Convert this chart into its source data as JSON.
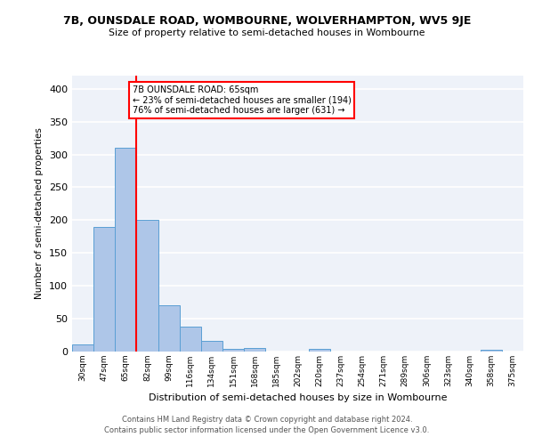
{
  "title_line1": "7B, OUNSDALE ROAD, WOMBOURNE, WOLVERHAMPTON, WV5 9JE",
  "title_line2": "Size of property relative to semi-detached houses in Wombourne",
  "xlabel": "Distribution of semi-detached houses by size in Wombourne",
  "ylabel": "Number of semi-detached properties",
  "footnote1": "Contains HM Land Registry data © Crown copyright and database right 2024.",
  "footnote2": "Contains public sector information licensed under the Open Government Licence v3.0.",
  "bar_labels": [
    "30sqm",
    "47sqm",
    "65sqm",
    "82sqm",
    "99sqm",
    "116sqm",
    "134sqm",
    "151sqm",
    "168sqm",
    "185sqm",
    "202sqm",
    "220sqm",
    "237sqm",
    "254sqm",
    "271sqm",
    "289sqm",
    "306sqm",
    "323sqm",
    "340sqm",
    "358sqm",
    "375sqm"
  ],
  "bar_values": [
    11,
    190,
    310,
    200,
    70,
    38,
    16,
    4,
    6,
    0,
    0,
    4,
    0,
    0,
    0,
    0,
    0,
    0,
    0,
    3,
    0
  ],
  "bar_color": "#aec6e8",
  "bar_edge_color": "#5a9fd4",
  "background_color": "#eef2f9",
  "grid_color": "white",
  "annotation_line1": "7B OUNSDALE ROAD: 65sqm",
  "annotation_line2": "← 23% of semi-detached houses are smaller (194)",
  "annotation_line3": "76% of semi-detached houses are larger (631) →",
  "annotation_box_color": "white",
  "annotation_box_edge": "red",
  "property_line_color": "red",
  "property_bar_index": 2,
  "ylim": [
    0,
    420
  ],
  "yticks": [
    0,
    50,
    100,
    150,
    200,
    250,
    300,
    350,
    400
  ]
}
